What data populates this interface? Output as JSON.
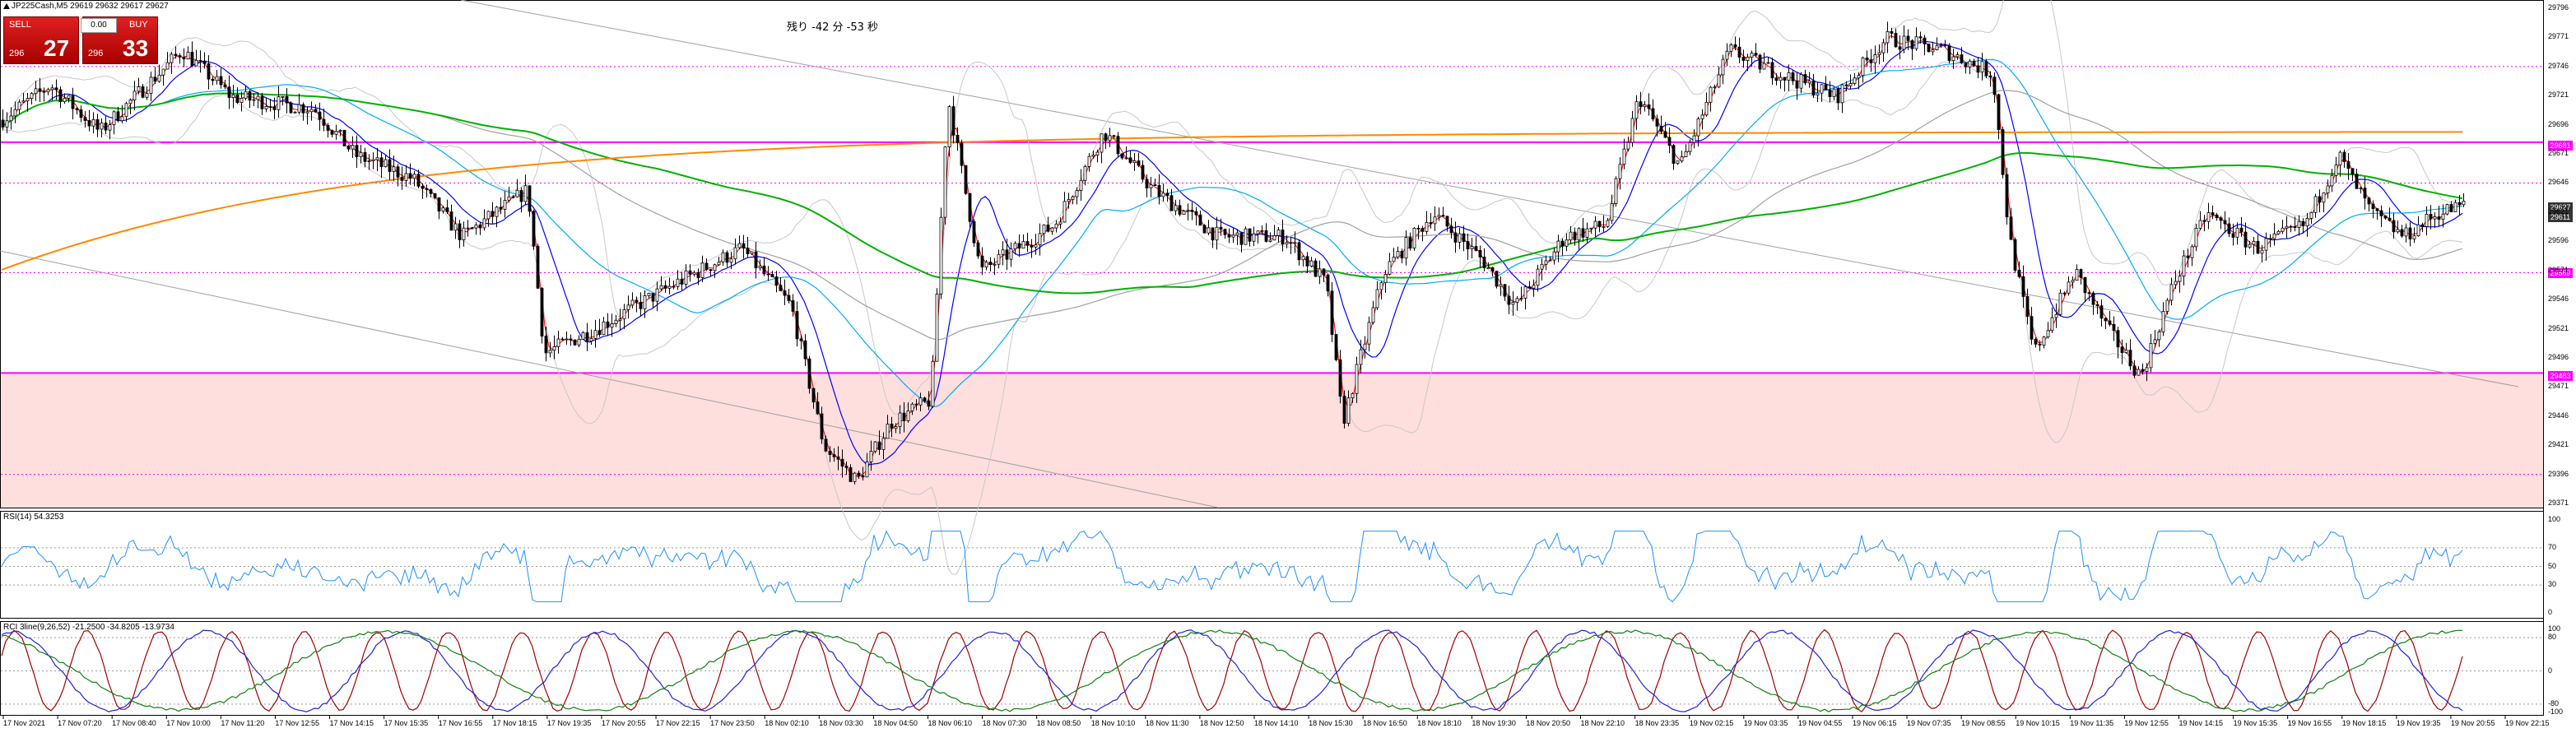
{
  "symbol_info": "JP225Cash,M5  29619 29632 29617 29627",
  "trade_panel": {
    "sell_label": "SELL",
    "buy_label": "BUY",
    "volume": "0.00",
    "sell_small": "296",
    "sell_big": "27",
    "buy_small": "296",
    "buy_big": "33"
  },
  "timer_text": "残り -42 分 -53 秒",
  "rsi_label": "RSI(14) 54.3253",
  "rci_label": "RCI 3line(9,26,52) -21.2500 -34.8205 -13.9734",
  "price_tags": {
    "upper_magenta": "29681",
    "current": "29627",
    "current_dark": "29611",
    "lower_magenta": "29569",
    "support": "29483"
  },
  "colors": {
    "bull": "#000000",
    "bear": "#000000",
    "magenta": "#ff00ff",
    "zone": "#ffdede",
    "ma_red": "#ff0000",
    "ma_blue": "#0000ff",
    "ma_sky": "#00aaff",
    "ma_green": "#00b000",
    "ma_orange": "#ff8800",
    "ma_gray": "#a0a0a0",
    "rsi_line": "#1e90ff"
  },
  "chart_data": {
    "type": "candlestick",
    "y_ticks": [
      "29796",
      "29771",
      "29746",
      "29721",
      "29696",
      "29671",
      "29646",
      "29621",
      "29596",
      "29571",
      "29546",
      "29521",
      "29496",
      "29471",
      "29446",
      "29421",
      "29396",
      "29371"
    ],
    "rsi_ticks": [
      "100",
      "70",
      "50",
      "30",
      "0"
    ],
    "rci_ticks": [
      "100",
      "80",
      "0",
      "-80",
      "-100"
    ],
    "x_labels": [
      "17 Nov 2021",
      "17 Nov 07:20",
      "17 Nov 08:40",
      "17 Nov 10:00",
      "17 Nov 11:20",
      "17 Nov 12:55",
      "17 Nov 14:15",
      "17 Nov 15:35",
      "17 Nov 16:55",
      "17 Nov 18:15",
      "17 Nov 19:35",
      "17 Nov 20:55",
      "17 Nov 22:15",
      "17 Nov 23:50",
      "18 Nov 02:10",
      "18 Nov 03:30",
      "18 Nov 04:50",
      "18 Nov 06:10",
      "18 Nov 07:30",
      "18 Nov 08:50",
      "18 Nov 10:10",
      "18 Nov 11:30",
      "18 Nov 12:50",
      "18 Nov 14:10",
      "18 Nov 15:30",
      "18 Nov 16:50",
      "18 Nov 18:10",
      "18 Nov 19:30",
      "18 Nov 20:50",
      "18 Nov 22:10",
      "18 Nov 23:35",
      "19 Nov 02:15",
      "19 Nov 03:35",
      "19 Nov 04:55",
      "19 Nov 06:15",
      "19 Nov 07:35",
      "19 Nov 08:55",
      "19 Nov 10:15",
      "19 Nov 11:35",
      "19 Nov 12:55",
      "19 Nov 14:15",
      "19 Nov 15:35",
      "19 Nov 16:55",
      "19 Nov 18:15",
      "19 Nov 19:35",
      "19 Nov 20:55",
      "19 Nov 22:15"
    ],
    "ylim": [
      29371,
      29796
    ],
    "key_levels": {
      "upper_magenta": 29681,
      "dashed_top": 29746,
      "dashed_mid": 29646,
      "dashed_low": 29569,
      "support": 29483,
      "dashed_bottom": 29396
    },
    "anchors": [
      [
        0,
        29700
      ],
      [
        60,
        29730
      ],
      [
        120,
        29690
      ],
      [
        220,
        29760
      ],
      [
        280,
        29720
      ],
      [
        380,
        29710
      ],
      [
        430,
        29670
      ],
      [
        500,
        29650
      ],
      [
        560,
        29600
      ],
      [
        640,
        29640
      ],
      [
        660,
        29500
      ],
      [
        720,
        29520
      ],
      [
        820,
        29560
      ],
      [
        900,
        29590
      ],
      [
        960,
        29540
      ],
      [
        1000,
        29420
      ],
      [
        1040,
        29390
      ],
      [
        1080,
        29440
      ],
      [
        1130,
        29460
      ],
      [
        1150,
        29720
      ],
      [
        1190,
        29570
      ],
      [
        1280,
        29610
      ],
      [
        1340,
        29690
      ],
      [
        1400,
        29640
      ],
      [
        1480,
        29600
      ],
      [
        1560,
        29600
      ],
      [
        1610,
        29560
      ],
      [
        1630,
        29440
      ],
      [
        1680,
        29570
      ],
      [
        1740,
        29620
      ],
      [
        1800,
        29580
      ],
      [
        1840,
        29540
      ],
      [
        1900,
        29600
      ],
      [
        1950,
        29610
      ],
      [
        1990,
        29720
      ],
      [
        2040,
        29660
      ],
      [
        2100,
        29760
      ],
      [
        2160,
        29740
      ],
      [
        2230,
        29720
      ],
      [
        2290,
        29770
      ],
      [
        2360,
        29760
      ],
      [
        2420,
        29740
      ],
      [
        2440,
        29600
      ],
      [
        2470,
        29500
      ],
      [
        2520,
        29570
      ],
      [
        2560,
        29520
      ],
      [
        2600,
        29480
      ],
      [
        2640,
        29560
      ],
      [
        2680,
        29620
      ],
      [
        2740,
        29590
      ],
      [
        2800,
        29610
      ],
      [
        2840,
        29670
      ],
      [
        2880,
        29620
      ],
      [
        2920,
        29600
      ],
      [
        2960,
        29620
      ],
      [
        2992,
        29627
      ]
    ]
  }
}
